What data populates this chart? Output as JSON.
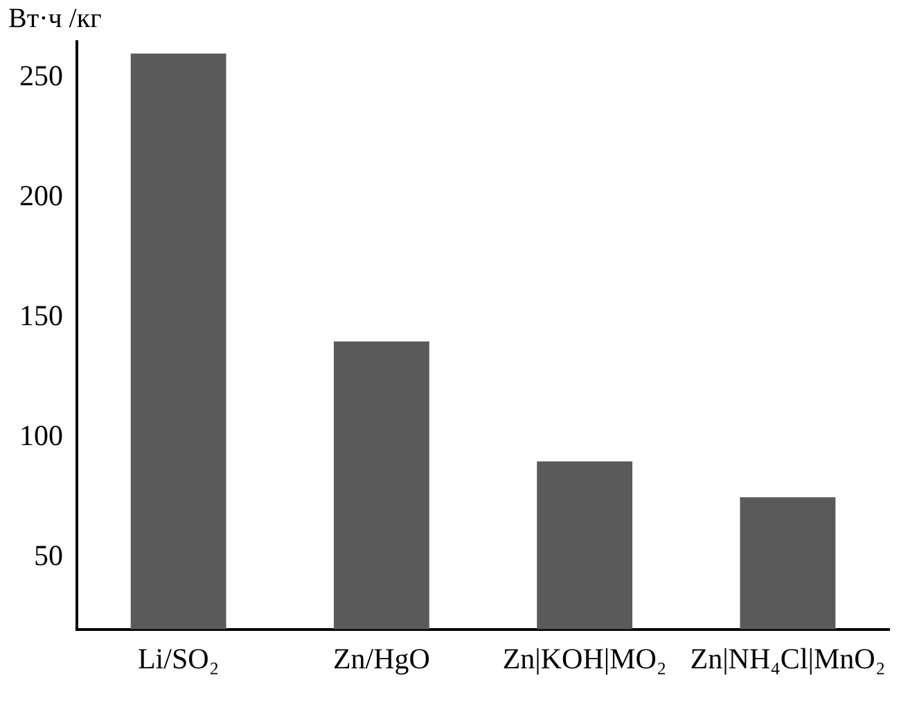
{
  "chart_data": {
    "type": "bar",
    "ylabel": "Вт·ч /кг",
    "categories": [
      "Li/SO₂",
      "Zn/HgO",
      "Zn|KOH|MO₂",
      "Zn|NH₄Cl|MnO₂"
    ],
    "values": [
      260,
      140,
      90,
      75
    ],
    "color": "#5a5a5a",
    "ylim": [
      20,
      265
    ],
    "yticks": [
      50,
      100,
      150,
      200,
      250
    ],
    "grid": false,
    "legend": false
  }
}
